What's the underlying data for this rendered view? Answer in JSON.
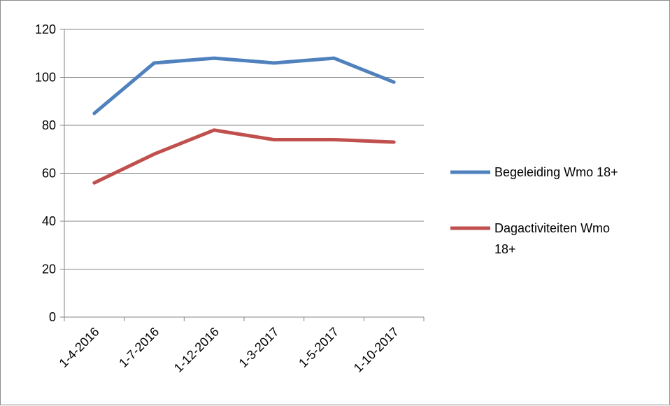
{
  "chart_data": {
    "type": "line",
    "categories": [
      "1-4-2016",
      "1-7-2016",
      "1-12-2016",
      "1-3-2017",
      "1-5-2017",
      "1-10-2017"
    ],
    "series": [
      {
        "name": "Begeleiding Wmo 18+",
        "values": [
          85,
          106,
          108,
          106,
          108,
          98
        ],
        "color": "#4f81bd"
      },
      {
        "name": "Dagactiviteiten Wmo 18+",
        "values": [
          56,
          68,
          78,
          74,
          74,
          73
        ],
        "color": "#c0504d"
      }
    ],
    "y_ticks": [
      "0",
      "20",
      "40",
      "60",
      "80",
      "100",
      "120"
    ],
    "ylim": [
      0,
      120
    ],
    "grid": true,
    "legend_position": "right",
    "title": "",
    "xlabel": "",
    "ylabel": ""
  }
}
